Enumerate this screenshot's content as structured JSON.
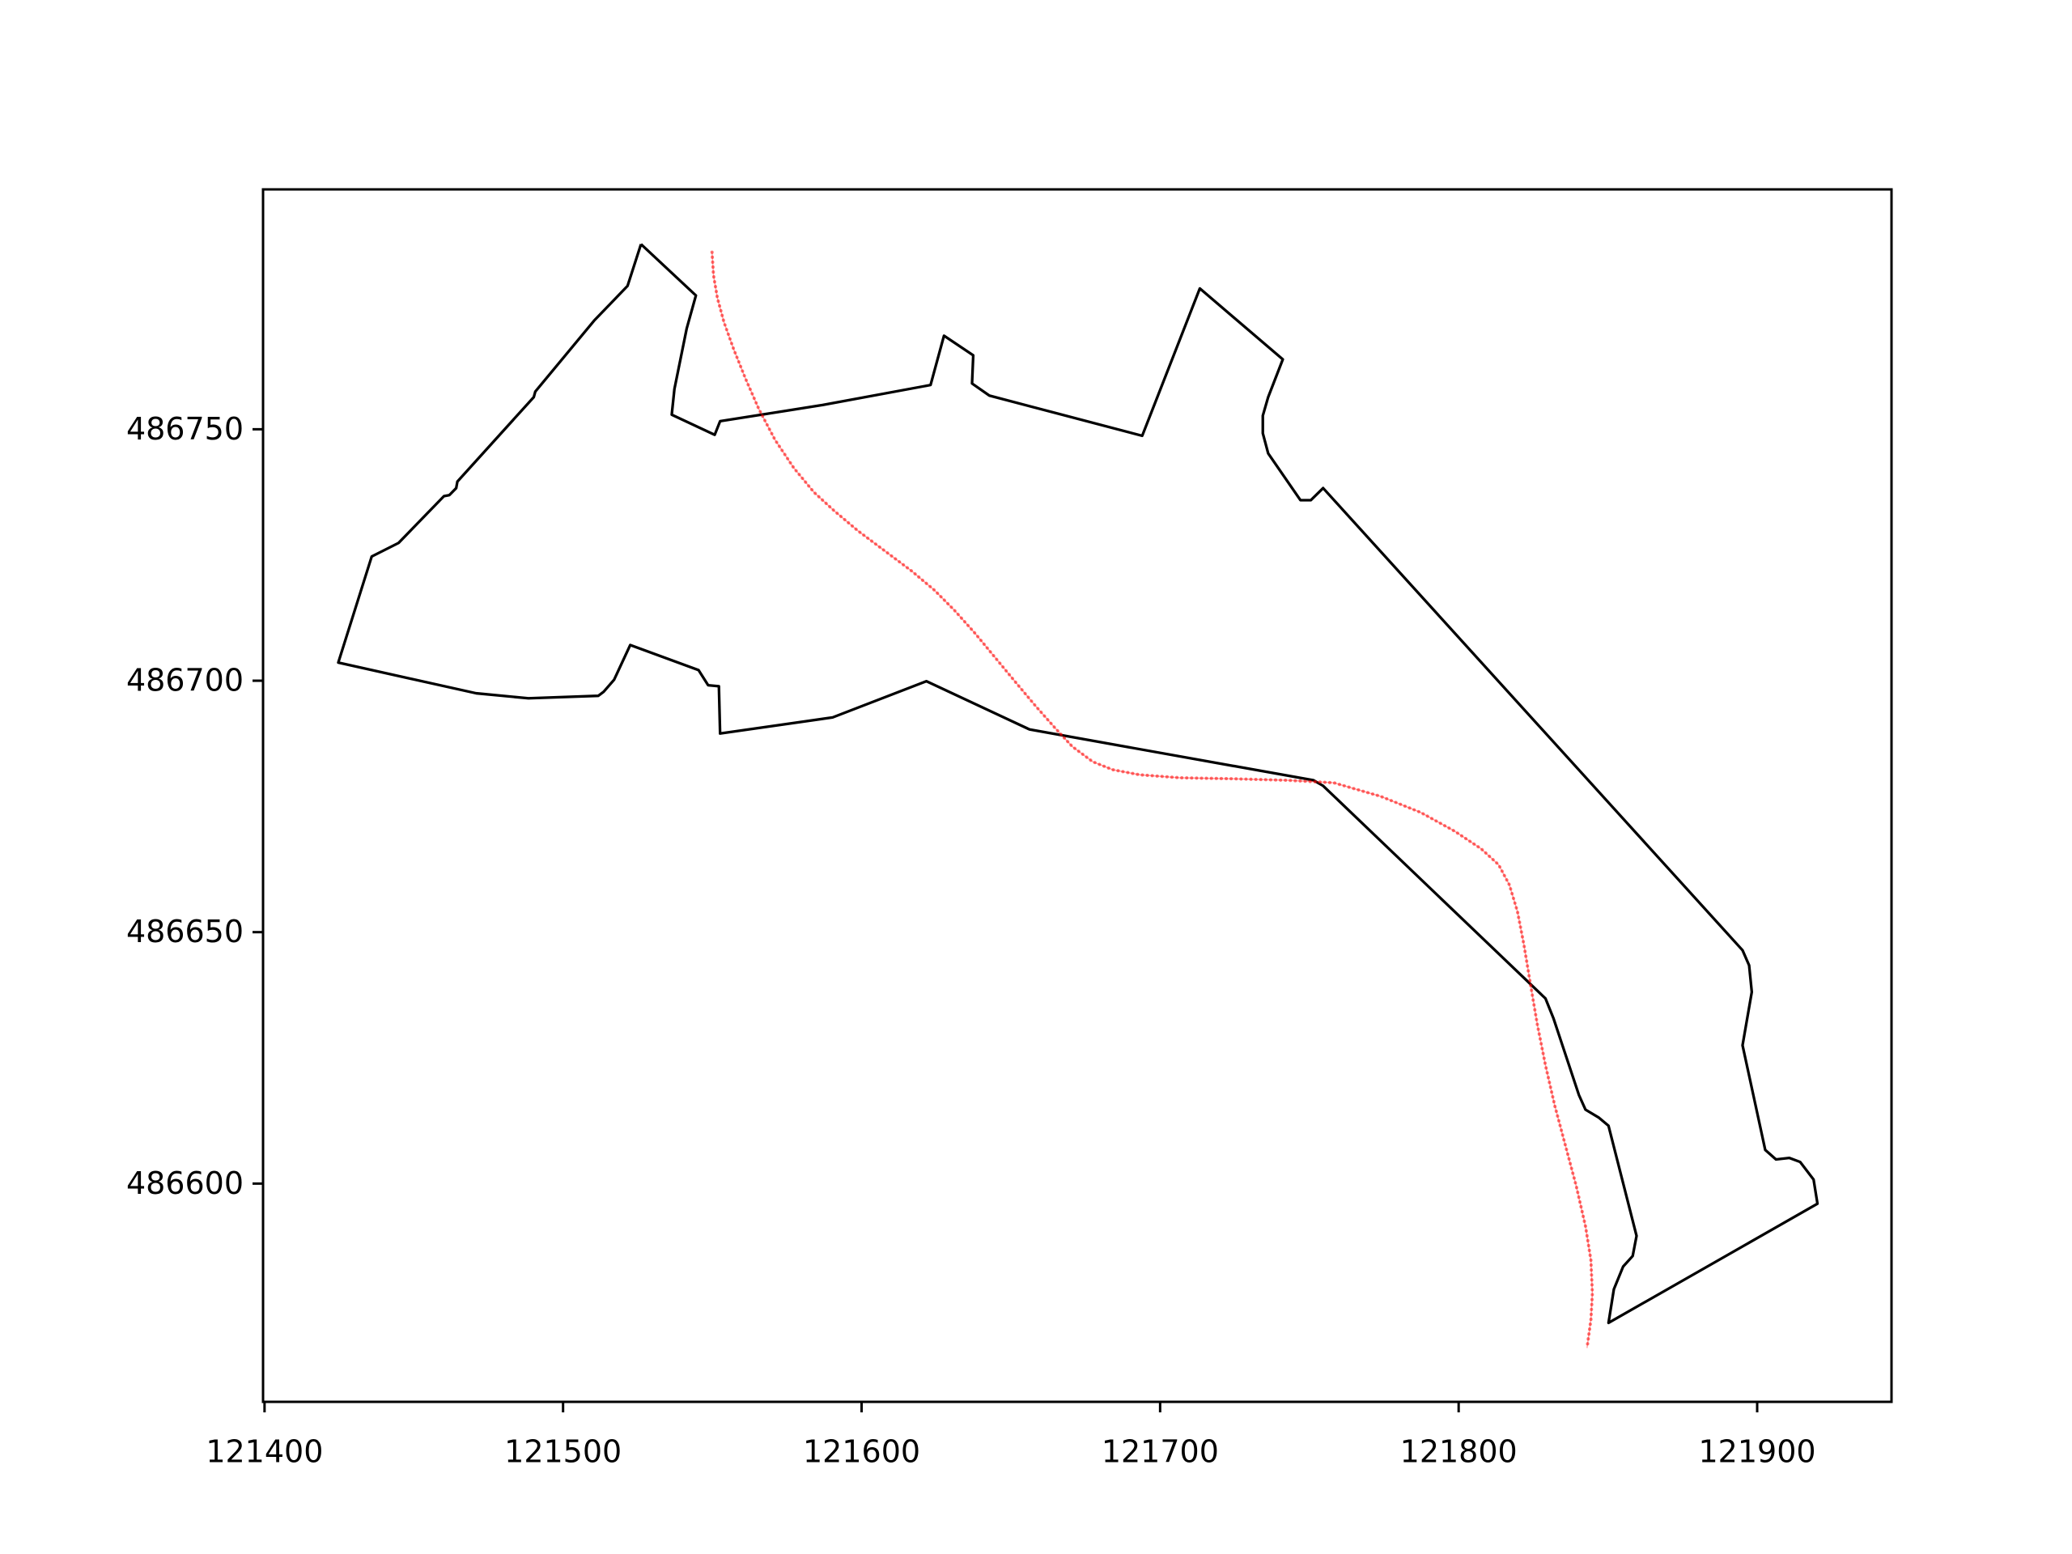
{
  "chart_data": {
    "type": "line",
    "xlim": [
      121399.5,
      121945
    ],
    "ylim": [
      486556.6,
      486797.7
    ],
    "xticks": [
      121400,
      121500,
      121600,
      121700,
      121800,
      121900
    ],
    "yticks": [
      486600,
      486650,
      486700,
      486750
    ],
    "series": [
      {
        "mode": "outline",
        "color": "#000000",
        "x": [
          121526.1,
          121544.5,
          121541.4,
          121537.3,
          121536.4,
          121550.8,
          121552.6,
          121586.7,
          121623.1,
          121627.6,
          121637.4,
          121637,
          121642.8,
          121694,
          121713.3,
          121741.1,
          121736.2,
          121734.4,
          121734.4,
          121736.2,
          121747,
          121750.5,
          121754.6,
          121895.1,
          121897.3,
          121898.2,
          121895.1,
          121902.7,
          121906.3,
          121910.8,
          121914.4,
          121918.9,
          121920.2,
          121850.2,
          121852,
          121855.1,
          121858.3,
          121859.6,
          121850.2,
          121847,
          121842.5,
          121840.3,
          121831.8,
          121829.1,
          121754.6,
          121751.4,
          121656.3,
          121621.7,
          121590.3,
          121552.6,
          121552.2,
          121548.6,
          121545.4,
          121522.5,
          121517.1,
          121513.6,
          121511.8,
          121488.4,
          121470.9,
          121424.7,
          121435.9,
          121444.9,
          121460.1,
          121461.9,
          121464.2,
          121464.6,
          121490.2,
          121490.7,
          121510.4,
          121521.6,
          121526.1
        ],
        "y": [
          486786.8,
          486776.6,
          486770,
          486758,
          486752.9,
          486748.9,
          486751.6,
          486754.8,
          486758.8,
          486768.6,
          486764.7,
          486759.1,
          486756.7,
          486748.7,
          486778,
          486763.9,
          486756.4,
          486752.7,
          486749.2,
          486745.2,
          486735.9,
          486735.9,
          486738.3,
          486646.4,
          486643.4,
          486638.1,
          486627.5,
          486606.7,
          486604.8,
          486605.1,
          486604.3,
          486600.8,
          486596,
          486572.3,
          486579,
          486583.5,
          486585.6,
          486589.6,
          486611.5,
          486613.1,
          486614.7,
          486617.6,
          486632.8,
          486636.8,
          486679.1,
          486680.2,
          486690.3,
          486699.9,
          486692.7,
          486689.5,
          486698.9,
          486699.1,
          486702.1,
          486707.1,
          486700.2,
          486697.8,
          486697,
          486696.5,
          486697.5,
          486703.6,
          486724.7,
          486727.4,
          486736.7,
          486736.9,
          486738.3,
          486739.6,
          486756.4,
          486757.5,
          486771.6,
          486778.5,
          486786.8
        ]
      },
      {
        "mode": "points",
        "color": "#ff0000",
        "x": [
          121549.9,
          121550.4,
          121551.7,
          121553.9,
          121557.1,
          121561.1,
          121565.6,
          121571,
          121577.3,
          121584,
          121590.8,
          121598.8,
          121607.8,
          121616.8,
          121624.4,
          121631.1,
          121637.9,
          121644.6,
          121651.3,
          121658.1,
          121664.8,
          121670.6,
          121677.4,
          121684.1,
          121693.1,
          121706.6,
          121724.5,
          121742.5,
          121758.2,
          121773.9,
          121787.3,
          121798.6,
          121807.5,
          121813.4,
          121817,
          121819.7,
          121821.9,
          121824.1,
          121826.4,
          121829.1,
          121832.2,
          121835.8,
          121839.4,
          121842.5,
          121844.3,
          121844.8,
          121844.3,
          121843
        ],
        "y": [
          486785.2,
          486780.6,
          486776.1,
          486771.3,
          486766,
          486760.1,
          486754,
          486747.9,
          486742.3,
          486737.5,
          486733.8,
          486729.8,
          486725.8,
          486721.8,
          486718,
          486714,
          486709.5,
          486704.7,
          486699.9,
          486695.1,
          486690.6,
          486686.9,
          486683.9,
          486682.3,
          486681.3,
          486680.7,
          486680.5,
          486680.2,
          486679.7,
          486677,
          486673.8,
          486670.1,
          486666.6,
          486663.4,
          486659.4,
          486654.1,
          486647.4,
          486639.5,
          486631.5,
          486623.5,
          486615.5,
          486607.5,
          486599.5,
          486591.5,
          486584.8,
          486578.2,
          486572.9,
          486567.3
        ]
      }
    ]
  }
}
